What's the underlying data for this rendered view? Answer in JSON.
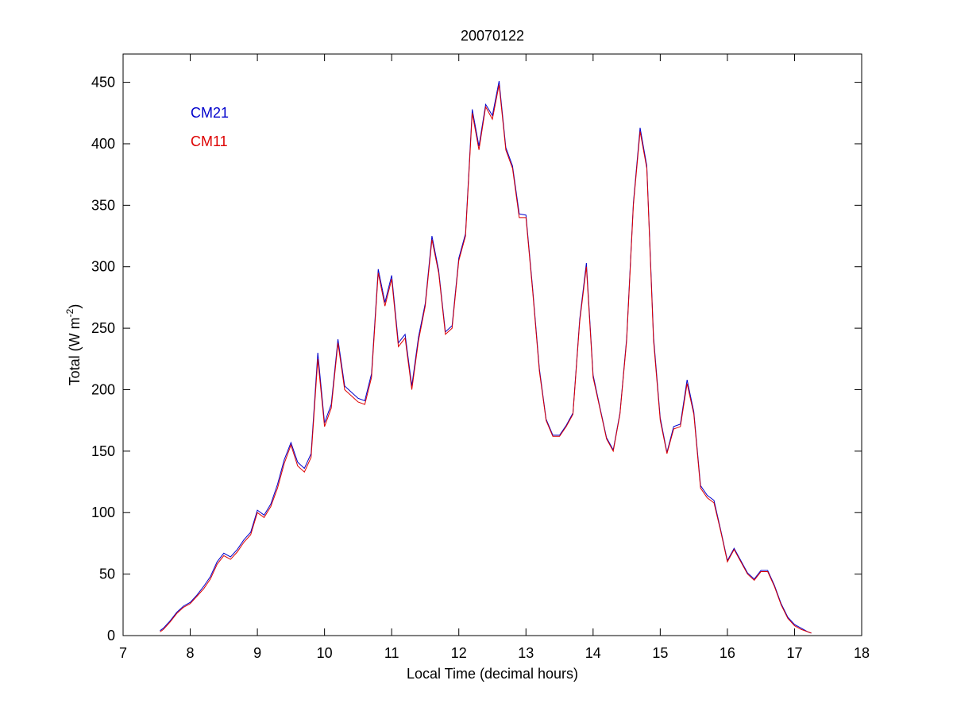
{
  "chart_data": {
    "type": "line",
    "title": "20070122",
    "xlabel": "Local Time (decimal hours)",
    "ylabel": {
      "text": "Total (W m",
      "superscript": "-2",
      "suffix": ")"
    },
    "x": [
      7.55,
      7.6,
      7.7,
      7.8,
      7.9,
      8.0,
      8.1,
      8.2,
      8.3,
      8.4,
      8.5,
      8.6,
      8.7,
      8.8,
      8.9,
      9.0,
      9.1,
      9.2,
      9.3,
      9.4,
      9.5,
      9.6,
      9.7,
      9.8,
      9.9,
      10.0,
      10.1,
      10.2,
      10.3,
      10.4,
      10.5,
      10.6,
      10.7,
      10.8,
      10.9,
      11.0,
      11.1,
      11.2,
      11.3,
      11.4,
      11.5,
      11.6,
      11.7,
      11.8,
      11.9,
      12.0,
      12.1,
      12.2,
      12.3,
      12.4,
      12.5,
      12.6,
      12.7,
      12.8,
      12.9,
      13.0,
      13.1,
      13.2,
      13.3,
      13.4,
      13.5,
      13.6,
      13.7,
      13.8,
      13.9,
      14.0,
      14.1,
      14.2,
      14.3,
      14.4,
      14.5,
      14.6,
      14.7,
      14.8,
      14.9,
      15.0,
      15.1,
      15.2,
      15.3,
      15.4,
      15.5,
      15.6,
      15.7,
      15.8,
      15.9,
      16.0,
      16.1,
      16.2,
      16.3,
      16.4,
      16.5,
      16.6,
      16.7,
      16.8,
      16.9,
      17.0,
      17.1,
      17.2,
      17.25
    ],
    "series": [
      {
        "name": "CM21",
        "color": "#0000cc",
        "values": [
          4,
          6,
          12,
          19,
          24,
          27,
          33,
          40,
          48,
          60,
          67,
          64,
          70,
          78,
          84,
          102,
          98,
          107,
          123,
          143,
          157,
          141,
          136,
          148,
          230,
          173,
          188,
          241,
          203,
          198,
          193,
          191,
          213,
          298,
          271,
          293,
          238,
          245,
          203,
          243,
          270,
          325,
          297,
          247,
          252,
          307,
          327,
          428,
          398,
          432,
          423,
          451,
          397,
          382,
          343,
          342,
          282,
          217,
          176,
          163,
          163,
          171,
          181,
          257,
          303,
          212,
          186,
          161,
          151,
          181,
          242,
          352,
          413,
          382,
          243,
          177,
          149,
          170,
          172,
          208,
          182,
          122,
          114,
          110,
          86,
          61,
          71,
          61,
          51,
          46,
          53,
          53,
          41,
          26,
          15,
          9,
          6,
          3,
          2
        ]
      },
      {
        "name": "CM11",
        "color": "#dd0000",
        "values": [
          3,
          5,
          11,
          18,
          23,
          26,
          32,
          38,
          46,
          58,
          65,
          62,
          68,
          76,
          82,
          100,
          96,
          105,
          120,
          140,
          155,
          138,
          133,
          145,
          225,
          170,
          185,
          238,
          200,
          195,
          190,
          188,
          210,
          295,
          268,
          290,
          235,
          242,
          200,
          240,
          268,
          322,
          295,
          245,
          250,
          305,
          325,
          425,
          395,
          430,
          420,
          448,
          395,
          380,
          340,
          340,
          280,
          215,
          175,
          162,
          162,
          170,
          180,
          255,
          300,
          210,
          185,
          160,
          150,
          180,
          240,
          350,
          410,
          380,
          240,
          175,
          148,
          168,
          170,
          205,
          180,
          120,
          112,
          108,
          85,
          60,
          70,
          60,
          50,
          45,
          52,
          52,
          40,
          25,
          14,
          8,
          5,
          3,
          2
        ]
      }
    ],
    "xlim": [
      7,
      18
    ],
    "xticks": [
      7,
      8,
      9,
      10,
      11,
      12,
      13,
      14,
      15,
      16,
      17,
      18
    ],
    "ylim": [
      0,
      473
    ],
    "yticks": [
      0,
      50,
      100,
      150,
      200,
      250,
      300,
      350,
      400,
      450
    ],
    "grid": false,
    "legend": "northwest"
  }
}
